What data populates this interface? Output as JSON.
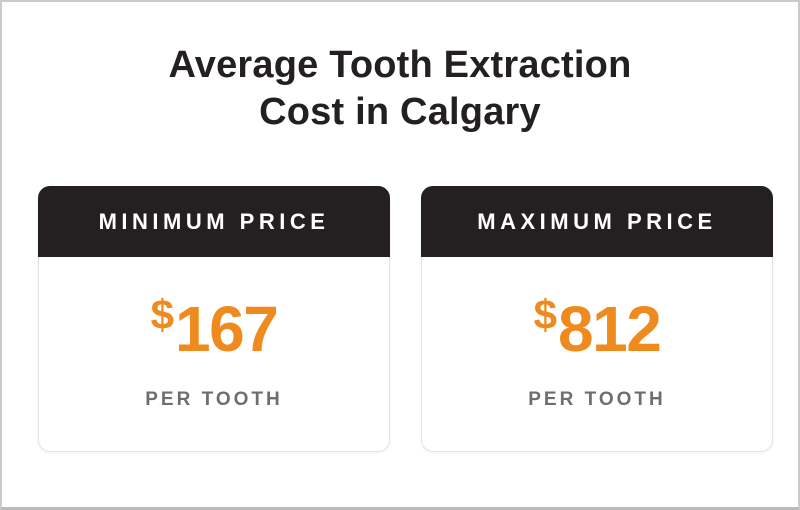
{
  "page": {
    "title_line1": "Average Tooth Extraction",
    "title_line2": "Cost in Calgary"
  },
  "cards": [
    {
      "header": "MINIMUM PRICE",
      "currency": "$",
      "amount": "167",
      "unit": "PER TOOTH"
    },
    {
      "header": "MAXIMUM PRICE",
      "currency": "$",
      "amount": "812",
      "unit": "PER TOOTH"
    }
  ],
  "colors": {
    "accent_orange": "#ee8a1e",
    "header_black": "#242021",
    "unit_gray": "#6f6e6e",
    "card_border": "#e4e3e3",
    "frame_border": "#cccbcb"
  },
  "chart_data": {
    "type": "table",
    "title": "Average Tooth Extraction Cost in Calgary",
    "categories": [
      "Minimum Price",
      "Maximum Price"
    ],
    "values": [
      167,
      812
    ],
    "currency_symbol": "$",
    "unit": "per tooth"
  }
}
